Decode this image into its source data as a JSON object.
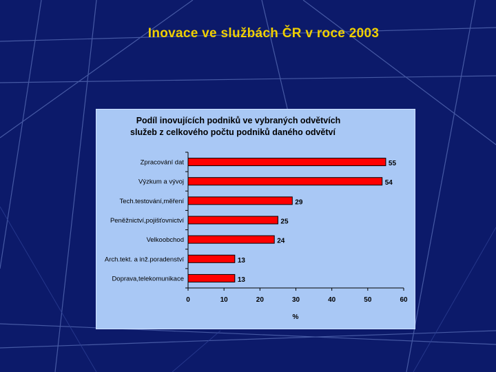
{
  "slide": {
    "title": "Inovace ve službách ČR v roce 2003"
  },
  "colors": {
    "background": "#0c1a6a",
    "title": "#f0d000",
    "panel": "#a9c8f5",
    "bar": "#ff0000"
  },
  "chart_data": {
    "type": "bar",
    "orientation": "horizontal",
    "title_lines": [
      "Podíl inovujících podniků ve vybraných odvětvích",
      "služeb z celkového počtu podniků daného odvětví"
    ],
    "categories": [
      "Zpracování dat",
      "Výzkum a vývoj",
      "Tech.testování,měření",
      "Peněžnictví,pojišťovnictví",
      "Velkoobchod",
      "Arch.tekt. a inž.poradenství",
      "Doprava,telekomunikace"
    ],
    "values": [
      55,
      54,
      29,
      25,
      24,
      13,
      13
    ],
    "value_labels": [
      "55",
      "54",
      "29",
      "25",
      "24",
      "13",
      "13"
    ],
    "xlabel": "%",
    "xlim": [
      0,
      60
    ],
    "xticks": [
      "0",
      "10",
      "20",
      "30",
      "40",
      "50",
      "60"
    ],
    "grid": false,
    "legend": "none"
  }
}
